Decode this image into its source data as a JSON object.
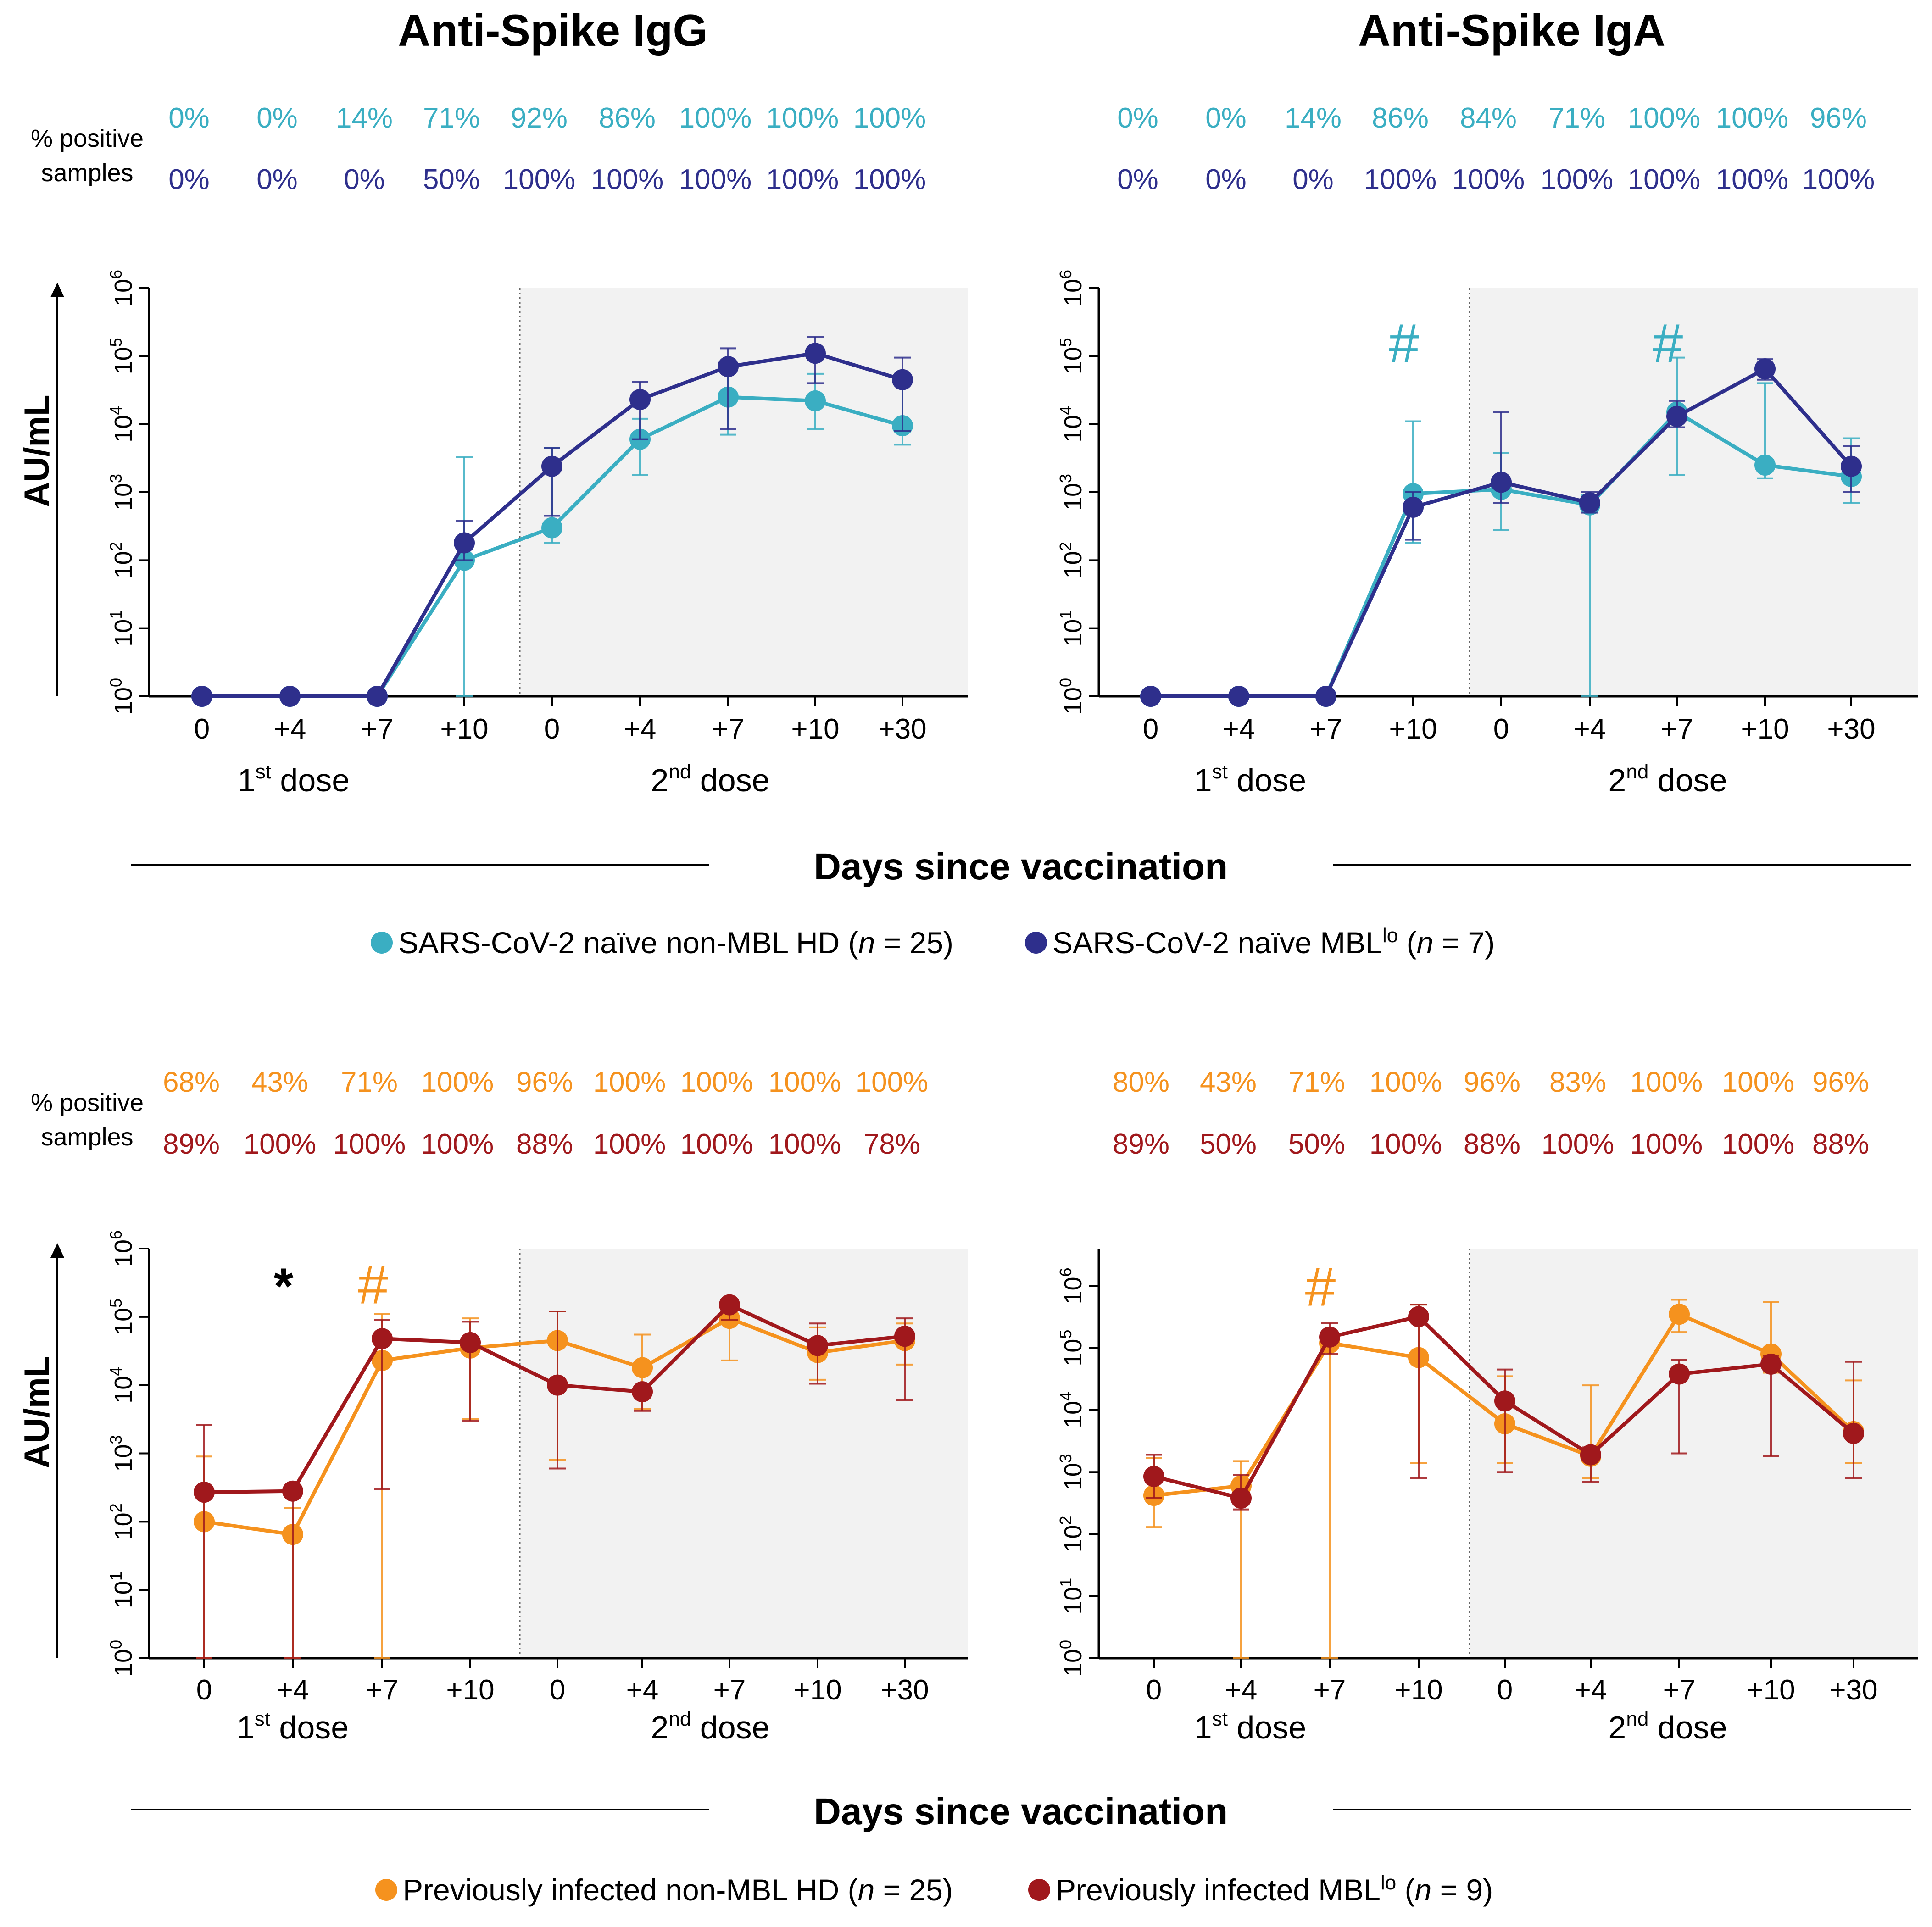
{
  "figure": {
    "titles": [
      "Anti-Spike IgG",
      "Anti-Spike IgA"
    ],
    "pct_label": [
      "% positive",
      "samples"
    ],
    "y_axis_label": "AU/mL",
    "x_axis_title": "Days since vaccination",
    "dose_labels": [
      {
        "ord": "1",
        "sup": "st",
        "rest": " dose"
      },
      {
        "ord": "2",
        "sup": "nd",
        "rest": " dose"
      }
    ],
    "legends": [
      [
        {
          "text": "SARS-CoV-2 naïve non-MBL HD (",
          "n": "n",
          "tail": " = 25)",
          "sup": ""
        },
        {
          "text": "SARS-CoV-2 naïve MBL",
          "sup": "lo",
          "n": "n",
          "tail": " = 7)",
          "pre_n": " ("
        }
      ],
      [
        {
          "text": "Previously infected non-MBL HD (",
          "n": "n",
          "tail": " = 25)",
          "sup": ""
        },
        {
          "text": "Previously infected MBL",
          "sup": "lo",
          "n": "n",
          "tail": " = 9)",
          "pre_n": " ("
        }
      ]
    ],
    "colors": {
      "naive_hd": "#3aaec2",
      "naive_mbl": "#2e2f8c",
      "inf_hd": "#f5921e",
      "inf_mbl": "#a0181c",
      "text": "#000000",
      "shade": "#f2f2f2",
      "axis": "#000000"
    }
  },
  "chart_data": [
    {
      "id": "igg-naive",
      "type": "line",
      "title": "Anti-Spike IgG",
      "ylabel": "AU/mL",
      "yscale": "log",
      "ylim": [
        1,
        1000000
      ],
      "categories": [
        "0",
        "+4",
        "+7",
        "+10",
        "0",
        "+4",
        "+7",
        "+10",
        "+30"
      ],
      "series": [
        {
          "name": "SARS-CoV-2 naïve non-MBL HD (n = 25)",
          "color": "#3aaec2",
          "values": [
            1,
            1,
            1,
            100,
            300,
            6000,
            25000,
            22000,
            9500
          ],
          "err_low": [
            1,
            1,
            1,
            1,
            180,
            1800,
            7000,
            8500,
            5000
          ],
          "err_high": [
            1,
            1,
            1,
            3300,
            4500,
            12000,
            60000,
            55000,
            40000
          ],
          "pct_positive": [
            "0%",
            "0%",
            "14%",
            "71%",
            "92%",
            "86%",
            "100%",
            "100%",
            "100%"
          ]
        },
        {
          "name": "SARS-CoV-2 naïve MBLlo (n = 7)",
          "color": "#2e2f8c",
          "values": [
            1,
            1,
            1,
            180,
            2400,
            23000,
            70000,
            110000,
            45000
          ],
          "err_low": [
            1,
            1,
            1,
            100,
            450,
            6000,
            8500,
            40000,
            8000
          ],
          "err_high": [
            1,
            1,
            1,
            380,
            4500,
            42000,
            130000,
            190000,
            95000
          ],
          "pct_positive": [
            "0%",
            "0%",
            "0%",
            "50%",
            "100%",
            "100%",
            "100%",
            "100%",
            "100%"
          ]
        }
      ],
      "annotations": []
    },
    {
      "id": "iga-naive",
      "type": "line",
      "title": "Anti-Spike IgA",
      "ylabel": "AU/mL",
      "yscale": "log",
      "ylim": [
        1,
        1000000
      ],
      "categories": [
        "0",
        "+4",
        "+7",
        "+10",
        "0",
        "+4",
        "+7",
        "+10",
        "+30"
      ],
      "series": [
        {
          "name": "SARS-CoV-2 naïve non-MBL HD (n = 25)",
          "color": "#3aaec2",
          "values": [
            1,
            1,
            1,
            950,
            1100,
            650,
            15000,
            2500,
            1700
          ],
          "err_low": [
            1,
            1,
            1,
            180,
            280,
            1,
            1800,
            1600,
            700
          ],
          "err_high": [
            1,
            1,
            1,
            11000,
            3800,
            900,
            95000,
            40000,
            6200
          ],
          "pct_positive": [
            "0%",
            "0%",
            "14%",
            "86%",
            "84%",
            "71%",
            "100%",
            "100%",
            "96%"
          ]
        },
        {
          "name": "SARS-CoV-2 naïve MBLlo (n = 7)",
          "color": "#2e2f8c",
          "values": [
            1,
            1,
            1,
            600,
            1400,
            700,
            13000,
            65000,
            2400
          ],
          "err_low": [
            1,
            1,
            1,
            200,
            700,
            500,
            9000,
            45000,
            1000
          ],
          "err_high": [
            1,
            1,
            1,
            1000,
            15000,
            1000,
            22000,
            90000,
            4800
          ],
          "pct_positive": [
            "0%",
            "0%",
            "0%",
            "100%",
            "100%",
            "100%",
            "100%",
            "100%",
            "100%"
          ]
        }
      ],
      "annotations": [
        {
          "text": "#",
          "category_index": 3,
          "value": 130000,
          "color": "#3aaec2"
        },
        {
          "text": "#",
          "category_index": 6,
          "value": 130000,
          "color": "#3aaec2"
        }
      ]
    },
    {
      "id": "igg-infected",
      "type": "line",
      "title": "",
      "ylabel": "AU/mL",
      "yscale": "log",
      "ylim": [
        1,
        1000000
      ],
      "categories": [
        "0",
        "+4",
        "+7",
        "+10",
        "0",
        "+4",
        "+7",
        "+10",
        "+30"
      ],
      "series": [
        {
          "name": "Previously infected non-MBL HD (n = 25)",
          "color": "#f5921e",
          "values": [
            100,
            65,
            23000,
            35000,
            45000,
            18000,
            95000,
            30000,
            45000
          ],
          "err_low": [
            1,
            1,
            1,
            3200,
            800,
            4500,
            23000,
            12000,
            20000
          ],
          "err_high": [
            900,
            160,
            110000,
            95000,
            120000,
            55000,
            130000,
            70000,
            80000
          ],
          "pct_positive": [
            "68%",
            "43%",
            "71%",
            "100%",
            "96%",
            "100%",
            "100%",
            "100%",
            "100%"
          ]
        },
        {
          "name": "Previously infected MBLlo (n = 9)",
          "color": "#a0181c",
          "values": [
            270,
            280,
            48000,
            42000,
            10000,
            8000,
            150000,
            38000,
            52000
          ],
          "err_low": [
            1,
            1,
            300,
            3000,
            600,
            4200,
            90000,
            10500,
            6000
          ],
          "err_high": [
            2600,
            280,
            90000,
            85000,
            120000,
            8000,
            170000,
            80000,
            95000
          ],
          "pct_positive": [
            "89%",
            "100%",
            "100%",
            "100%",
            "88%",
            "100%",
            "100%",
            "100%",
            "78%"
          ]
        }
      ],
      "annotations": [
        {
          "text": "*",
          "category_index": 1,
          "value": 250000,
          "color": "#000000"
        },
        {
          "text": "#",
          "category_index": 2,
          "value": 250000,
          "color": "#f5921e"
        }
      ]
    },
    {
      "id": "iga-infected",
      "type": "line",
      "title": "",
      "ylabel": "AU/mL",
      "yscale": "log",
      "ylim": [
        1,
        4000000
      ],
      "categories": [
        "0",
        "+4",
        "+7",
        "+10",
        "0",
        "+4",
        "+7",
        "+10",
        "+30"
      ],
      "series": [
        {
          "name": "Previously infected non-MBL HD (n = 25)",
          "color": "#f5921e",
          "values": [
            420,
            600,
            120000,
            70000,
            6000,
            1800,
            350000,
            80000,
            4500
          ],
          "err_low": [
            130,
            1,
            1,
            1400,
            1400,
            800,
            180000,
            40000,
            1400
          ],
          "err_high": [
            1700,
            1500,
            160000,
            500000,
            35000,
            25000,
            600000,
            550000,
            30000
          ],
          "pct_positive": [
            "80%",
            "43%",
            "71%",
            "100%",
            "96%",
            "83%",
            "100%",
            "100%",
            "96%"
          ]
        },
        {
          "name": "Previously infected MBLlo (n = 9)",
          "color": "#a0181c",
          "values": [
            850,
            380,
            150000,
            320000,
            14000,
            1900,
            38000,
            55000,
            4200
          ],
          "err_low": [
            380,
            250,
            80000,
            800,
            1000,
            700,
            2000,
            1800,
            800
          ],
          "err_high": [
            1900,
            900,
            250000,
            500000,
            45000,
            2500,
            65000,
            75000,
            60000
          ],
          "pct_positive": [
            "89%",
            "50%",
            "50%",
            "100%",
            "88%",
            "100%",
            "100%",
            "100%",
            "88%"
          ]
        }
      ],
      "annotations": [
        {
          "text": "#",
          "category_index": 2,
          "value": 800000,
          "color": "#f5921e"
        }
      ]
    }
  ]
}
